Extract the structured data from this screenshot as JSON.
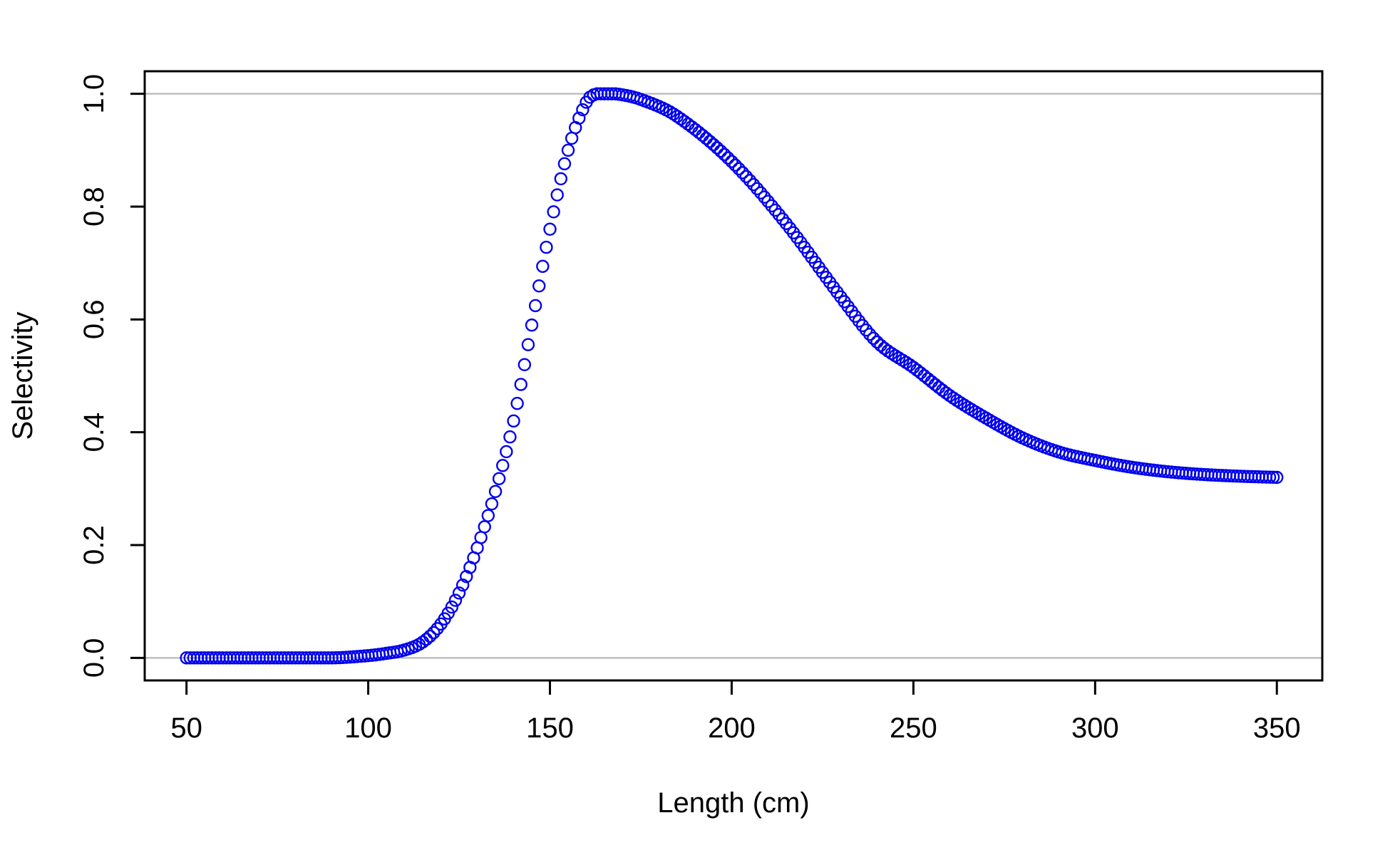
{
  "chart_data": {
    "type": "scatter",
    "title": "",
    "xlabel": "Length (cm)",
    "ylabel": "Selectivity",
    "xlim": [
      38.5,
      362.5
    ],
    "ylim": [
      -0.04,
      1.04
    ],
    "xticks": [
      50,
      100,
      150,
      200,
      250,
      300,
      350
    ],
    "yticks": [
      0.0,
      0.2,
      0.4,
      0.6,
      0.8,
      1.0
    ],
    "xtick_labels": [
      "50",
      "100",
      "150",
      "200",
      "250",
      "300",
      "350"
    ],
    "ytick_labels": [
      "0.0",
      "0.2",
      "0.4",
      "0.6",
      "0.8",
      "1.0"
    ],
    "reference_lines": [
      0,
      1
    ],
    "grid": false,
    "legend": "none",
    "marker": "open-circle",
    "colors": {
      "points": "#0000ee",
      "reference_line": "#bebebe",
      "axis": "#000000"
    },
    "x_step": 1,
    "series": [
      {
        "x_start": 50,
        "x_end": 350,
        "anchors": [
          [
            50,
            0.0
          ],
          [
            90,
            0.0
          ],
          [
            100,
            0.004
          ],
          [
            105,
            0.008
          ],
          [
            110,
            0.014
          ],
          [
            115,
            0.028
          ],
          [
            120,
            0.06
          ],
          [
            125,
            0.115
          ],
          [
            130,
            0.195
          ],
          [
            135,
            0.295
          ],
          [
            140,
            0.42
          ],
          [
            145,
            0.59
          ],
          [
            150,
            0.76
          ],
          [
            155,
            0.9
          ],
          [
            160,
            0.985
          ],
          [
            163,
            1.0
          ],
          [
            168,
            1.0
          ],
          [
            175,
            0.99
          ],
          [
            185,
            0.96
          ],
          [
            200,
            0.88
          ],
          [
            215,
            0.77
          ],
          [
            230,
            0.64
          ],
          [
            240,
            0.56
          ],
          [
            250,
            0.515
          ],
          [
            260,
            0.465
          ],
          [
            270,
            0.425
          ],
          [
            280,
            0.39
          ],
          [
            290,
            0.365
          ],
          [
            300,
            0.35
          ],
          [
            310,
            0.338
          ],
          [
            320,
            0.33
          ],
          [
            330,
            0.325
          ],
          [
            340,
            0.322
          ],
          [
            350,
            0.32
          ]
        ]
      }
    ]
  }
}
